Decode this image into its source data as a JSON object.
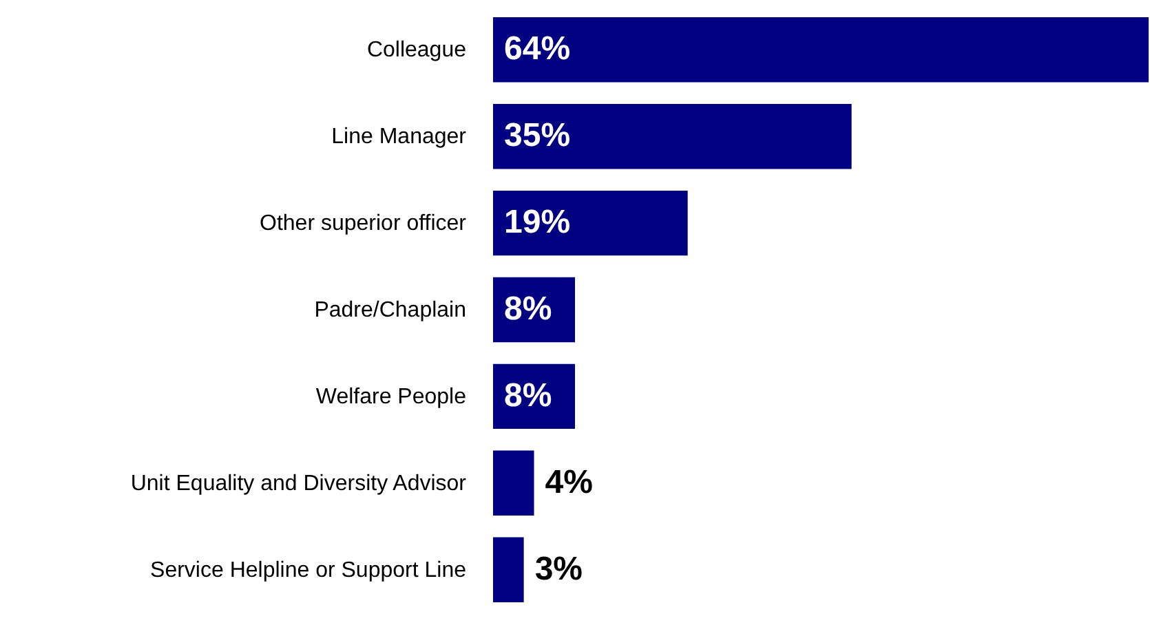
{
  "chart_data": {
    "type": "bar",
    "orientation": "horizontal",
    "categories": [
      "Colleague",
      "Line Manager",
      "Other superior officer",
      "Padre/Chaplain",
      "Welfare People",
      "Unit Equality and Diversity Advisor",
      "Service Helpline or Support Line"
    ],
    "values": [
      64,
      35,
      19,
      8,
      8,
      4,
      3
    ],
    "value_labels": [
      "64%",
      "35%",
      "19%",
      "8%",
      "8%",
      "4%",
      "3%"
    ],
    "color": "#000080"
  }
}
